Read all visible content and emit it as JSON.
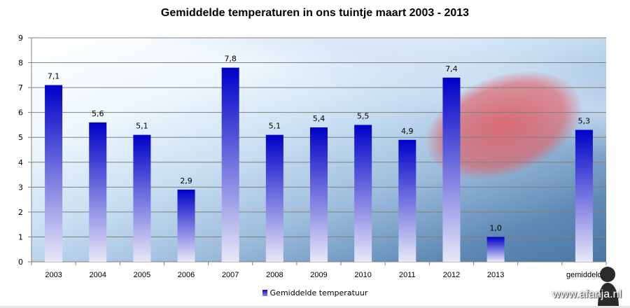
{
  "chart_data": {
    "type": "bar",
    "title": "Gemiddelde temperaturen in ons tuintje maart 2003 - 2013",
    "categories": [
      "2003",
      "2004",
      "2005",
      "2006",
      "2007",
      "2008",
      "2009",
      "2010",
      "2011",
      "2012",
      "2013",
      "",
      "gemiddeld"
    ],
    "series": [
      {
        "name": "Gemiddelde temperatuur",
        "values": [
          7.1,
          5.6,
          5.1,
          2.9,
          7.8,
          5.1,
          5.4,
          5.5,
          4.9,
          7.4,
          1.0,
          null,
          5.3
        ]
      }
    ],
    "data_labels": [
      "7,1",
      "5,6",
      "5,1",
      "2,9",
      "7,8",
      "5,1",
      "5,4",
      "5,5",
      "4,9",
      "7,4",
      "1,0",
      "",
      "5,3"
    ],
    "ylim": [
      0,
      9
    ],
    "yticks": [
      "0",
      "1",
      "2",
      "3",
      "4",
      "5",
      "6",
      "7",
      "8",
      "9"
    ],
    "grid": true,
    "legend_position": "bottom",
    "bar_color_top": "#0000c8",
    "bar_color_bottom": "#e8e8f8"
  },
  "watermark": "www.afanja.nl"
}
